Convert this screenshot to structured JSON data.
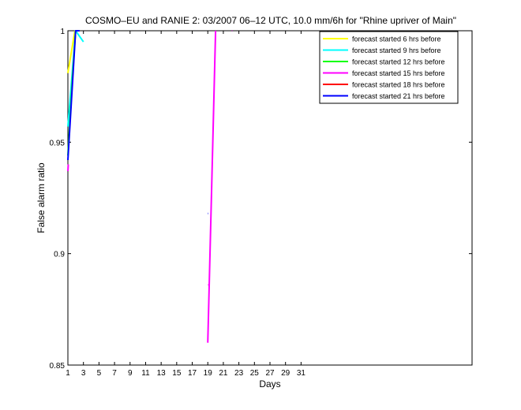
{
  "chart_data": {
    "type": "line",
    "title": "COSMO–EU and RANIE 2: 03/2007 06–12 UTC, 10.0 mm/6h for \"Rhine upriver of Main\"",
    "xlabel": "Days",
    "ylabel": "False alarm ratio",
    "xlim": [
      1,
      53
    ],
    "ylim": [
      0.85,
      1
    ],
    "x_ticks": [
      1,
      3,
      5,
      7,
      9,
      11,
      13,
      15,
      17,
      19,
      21,
      23,
      25,
      27,
      29,
      31
    ],
    "x_tick_labels": [
      "1",
      "3",
      "5",
      "7",
      "9",
      "11",
      "13",
      "15",
      "17",
      "19",
      "21",
      "23",
      "25",
      "27",
      "29",
      "31"
    ],
    "y_ticks": [
      0.85,
      0.9,
      0.95,
      1
    ],
    "y_tick_labels": [
      "0.85",
      "0.9",
      "0.95",
      "1"
    ],
    "legend_position": "top-right",
    "series": [
      {
        "name": "forecast started 6 hrs before",
        "color": "#ffff00",
        "segments": [
          [
            [
              1,
              0.981
            ],
            [
              1.9,
              1.0
            ]
          ]
        ]
      },
      {
        "name": "forecast started 9 hrs before",
        "color": "#00ffff",
        "segments": [
          [
            [
              1,
              0.957
            ],
            [
              2,
              1.0
            ],
            [
              3,
              0.995
            ]
          ]
        ]
      },
      {
        "name": "forecast started 12 hrs before",
        "color": "#00ff00",
        "segments": [
          [
            [
              1,
              0.944
            ],
            [
              1.6,
              0.98
            ],
            [
              2,
              1.0
            ]
          ]
        ]
      },
      {
        "name": "forecast started 15 hrs before",
        "color": "#ff00ff",
        "segments": [
          [
            [
              1,
              0.937
            ],
            [
              1.05,
              0.94
            ]
          ],
          [
            [
              19,
              0.86
            ],
            [
              20,
              1.0
            ]
          ],
          [
            [
              19,
              0.886
            ],
            [
              19.05,
              0.886
            ]
          ],
          [
            [
              22.1,
              1.0
            ],
            [
              22.15,
              1.0
            ]
          ]
        ]
      },
      {
        "name": "forecast started 18 hrs before",
        "color": "#ff0000",
        "segments": []
      },
      {
        "name": "forecast started 21 hrs before",
        "color": "#0000ff",
        "segments": [
          [
            [
              1,
              0.942
            ],
            [
              2,
              1.0
            ],
            [
              2.5,
              1.0
            ]
          ],
          [
            [
              19,
              0.918
            ],
            [
              19.05,
              0.918
            ]
          ]
        ]
      }
    ]
  }
}
